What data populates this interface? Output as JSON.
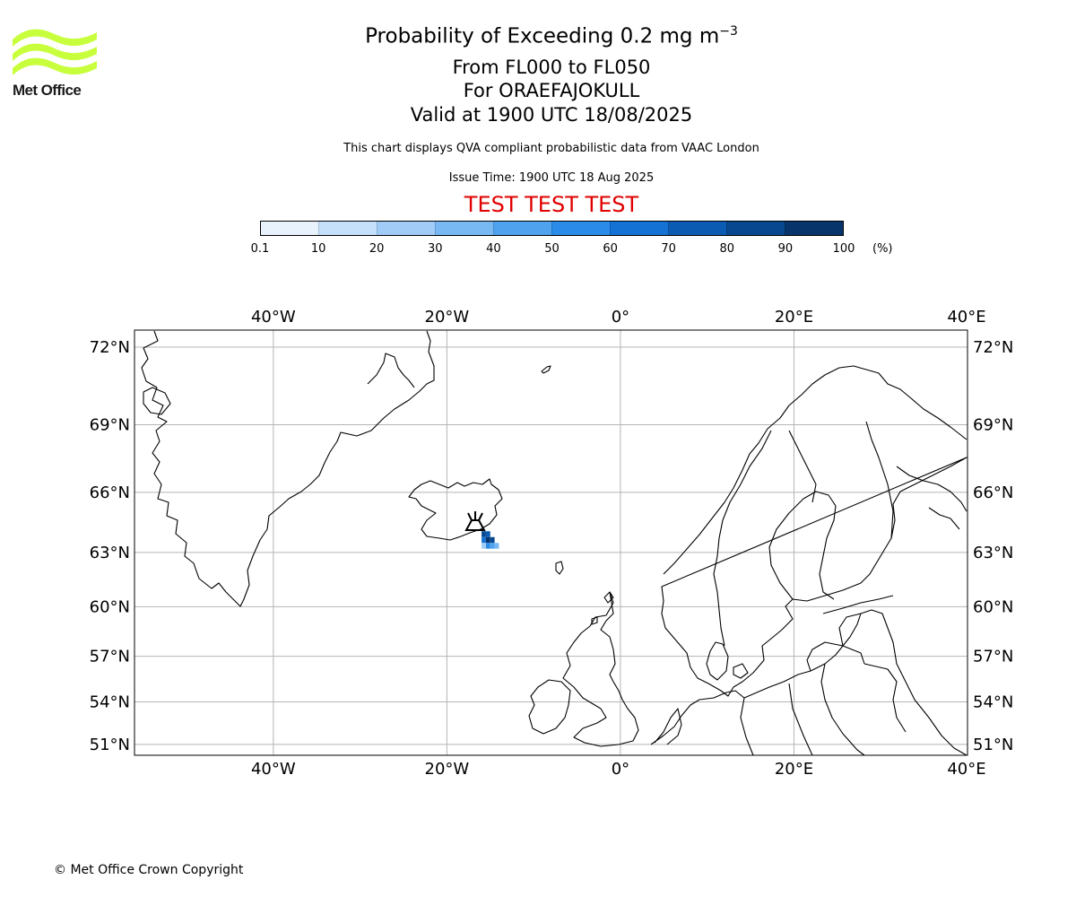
{
  "branding": {
    "logo_text": "Met Office",
    "logo_color": "#c8ff3c"
  },
  "header": {
    "title_main": "Probability of Exceeding 0.2 mg m",
    "title_exp": "−3",
    "levels": "From FL000 to FL050",
    "volcano": "For ORAEFAJOKULL",
    "valid": "Valid at 1900 UTC 18/08/2025",
    "note": "This chart displays QVA compliant probabilistic data from VAAC London",
    "issue": "Issue Time: 1900 UTC 18 Aug 2025",
    "test_banner": "TEST TEST TEST",
    "test_color": "#e00000"
  },
  "colorbar": {
    "labels": [
      "0.1",
      "10",
      "20",
      "30",
      "40",
      "50",
      "60",
      "70",
      "80",
      "90",
      "100"
    ],
    "unit": "(%)",
    "colors": [
      "#e8f2fd",
      "#c5e0fa",
      "#a0ccf7",
      "#78b8f3",
      "#4fa2ee",
      "#2b8be8",
      "#1372d4",
      "#0b5bb3",
      "#08488f",
      "#07356b",
      "#04244b"
    ]
  },
  "map": {
    "lon_range": [
      -56,
      40
    ],
    "lat_range": [
      50.2,
      72.6
    ],
    "top_lon_labels": [
      "40°W",
      "20°W",
      "0°",
      "20°E",
      "40°E"
    ],
    "bottom_lon_labels": [
      "40°W",
      "20°W",
      "0°",
      "20°E",
      "40°E"
    ],
    "left_lat_labels": [
      "72°N",
      "69°N",
      "66°N",
      "63°N",
      "60°N",
      "57°N",
      "54°N",
      "51°N"
    ],
    "right_lat_labels": [
      "72°N",
      "69°N",
      "66°N",
      "63°N",
      "60°N",
      "57°N",
      "54°N",
      "51°N"
    ],
    "volcano_symbol": "volcano-icon",
    "plume_cells": [
      {
        "lon": -16.0,
        "lat": 64.1,
        "pct": 85
      },
      {
        "lon": -15.5,
        "lat": 64.1,
        "pct": 75
      },
      {
        "lon": -16.0,
        "lat": 63.8,
        "pct": 65
      },
      {
        "lon": -15.5,
        "lat": 63.8,
        "pct": 90
      },
      {
        "lon": -15.0,
        "lat": 63.8,
        "pct": 80
      },
      {
        "lon": -15.5,
        "lat": 63.5,
        "pct": 55
      },
      {
        "lon": -15.0,
        "lat": 63.5,
        "pct": 45
      },
      {
        "lon": -14.5,
        "lat": 63.5,
        "pct": 35
      },
      {
        "lon": -16.0,
        "lat": 63.5,
        "pct": 25
      }
    ]
  },
  "footer": {
    "copyright": "© Met Office Crown Copyright"
  }
}
